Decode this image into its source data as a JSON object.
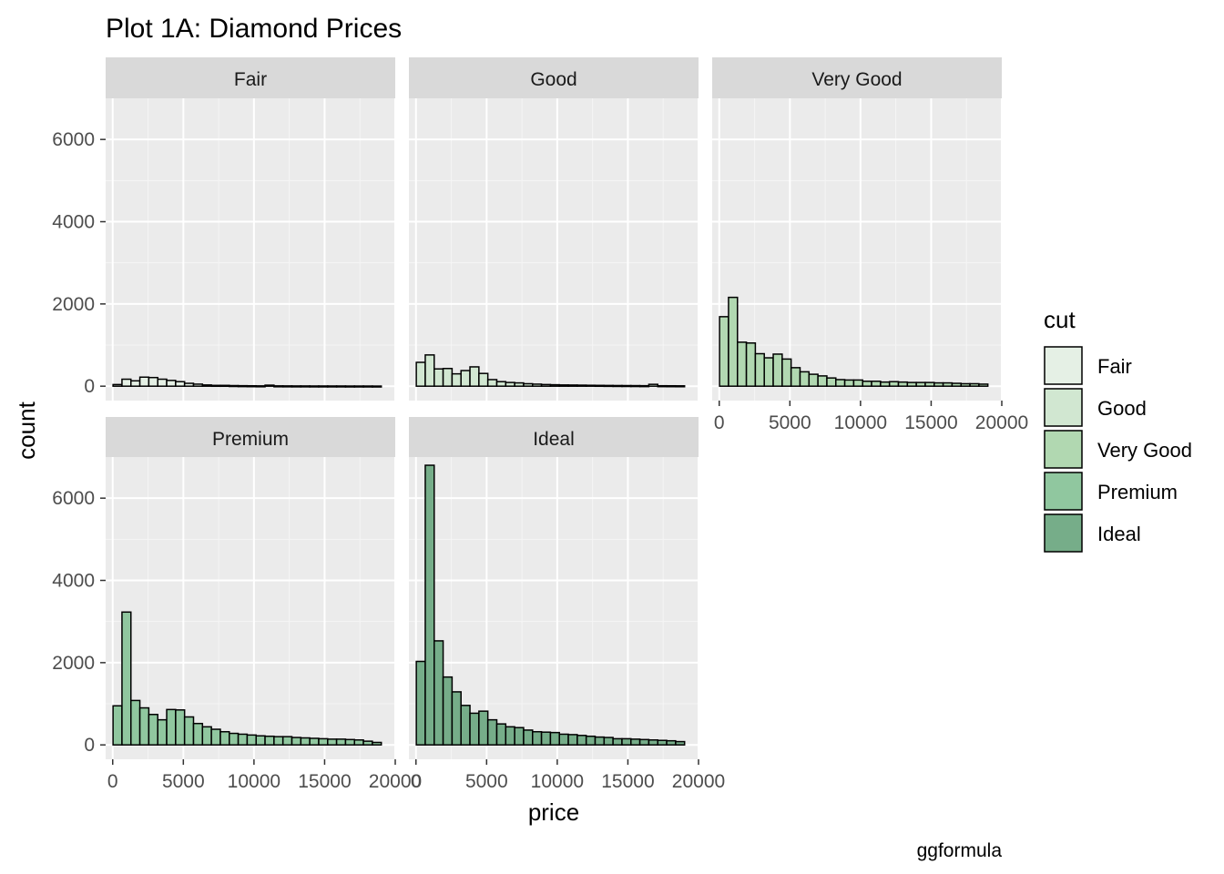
{
  "chart_data": {
    "type": "bar",
    "title": "Plot 1A: Diamond Prices",
    "xlabel": "price",
    "ylabel": "count",
    "caption": "ggformula",
    "facet_by": "cut",
    "ylim": [
      0,
      7000
    ],
    "yticks": [
      0,
      2000,
      4000,
      6000
    ],
    "xlim": [
      -500,
      20000
    ],
    "xticks": [
      0,
      5000,
      10000,
      15000,
      20000
    ],
    "bin_width": 633,
    "bin_centers": [
      340,
      973,
      1606,
      2239,
      2872,
      3505,
      4138,
      4771,
      5404,
      6037,
      6670,
      7303,
      7936,
      8569,
      9202,
      9835,
      10468,
      11101,
      11734,
      12367,
      13000,
      13633,
      14266,
      14899,
      15532,
      16165,
      16798,
      17431,
      18064,
      18697
    ],
    "grid": true,
    "legend": {
      "title": "cut",
      "position": "right",
      "entries": [
        "Fair",
        "Good",
        "Very Good",
        "Premium",
        "Ideal"
      ]
    },
    "series": [
      {
        "name": "Fair",
        "color": "#E5F0E5",
        "values": [
          40,
          170,
          130,
          220,
          210,
          170,
          140,
          110,
          70,
          50,
          30,
          20,
          20,
          15,
          12,
          10,
          8,
          25,
          8,
          7,
          6,
          6,
          5,
          5,
          5,
          5,
          4,
          4,
          4,
          3
        ]
      },
      {
        "name": "Good",
        "color": "#D1E7D1",
        "values": [
          580,
          760,
          420,
          430,
          300,
          380,
          470,
          310,
          160,
          110,
          90,
          80,
          60,
          50,
          40,
          35,
          30,
          28,
          25,
          22,
          20,
          18,
          16,
          15,
          14,
          12,
          45,
          11,
          10,
          9
        ]
      },
      {
        "name": "Very Good",
        "color": "#B1D8B1",
        "values": [
          1690,
          2160,
          1070,
          1050,
          790,
          690,
          780,
          660,
          450,
          350,
          290,
          250,
          200,
          160,
          150,
          150,
          120,
          120,
          100,
          110,
          100,
          90,
          90,
          90,
          80,
          80,
          70,
          60,
          60,
          50
        ]
      },
      {
        "name": "Premium",
        "color": "#90C79F",
        "values": [
          950,
          3230,
          1080,
          900,
          740,
          610,
          860,
          850,
          680,
          520,
          440,
          380,
          320,
          280,
          260,
          240,
          220,
          210,
          200,
          200,
          180,
          170,
          160,
          150,
          140,
          140,
          130,
          120,
          90,
          60
        ]
      },
      {
        "name": "Ideal",
        "color": "#76AD89",
        "values": [
          2030,
          6800,
          2530,
          1650,
          1290,
          960,
          770,
          820,
          610,
          510,
          440,
          420,
          360,
          320,
          310,
          300,
          260,
          250,
          230,
          210,
          190,
          180,
          150,
          150,
          140,
          130,
          120,
          110,
          100,
          80
        ]
      }
    ]
  }
}
